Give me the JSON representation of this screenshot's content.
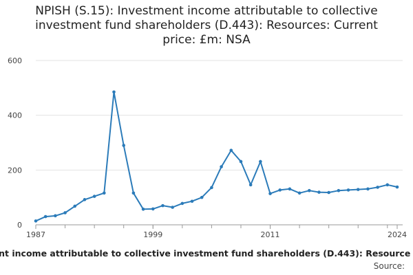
{
  "title_lines": [
    "NPISH (S.15): Investment income attributable to collective",
    "investment fund shareholders (D.443): Resources: Current",
    "price: £m: NSA"
  ],
  "footer": {
    "series_label": "ent income attributable to collective investment fund shareholders (D.443): Resource",
    "source": "Source:"
  },
  "chart_data": {
    "type": "line",
    "title": "NPISH (S.15): Investment income attributable to collective investment fund shareholders (D.443): Resources: Current price: £m: NSA",
    "xlabel": "",
    "ylabel": "",
    "xlim": [
      1987,
      2024
    ],
    "ylim": [
      0,
      600
    ],
    "y_ticks": [
      0,
      200,
      400,
      600
    ],
    "x_ticks": [
      1987,
      1999,
      2011,
      2024
    ],
    "grid": true,
    "line_color": "#2b7bb9",
    "series": [
      {
        "x": [
          1987,
          1988,
          1989,
          1990,
          1991,
          1992,
          1993,
          1994,
          1995,
          1996,
          1997,
          1998,
          1999,
          2000,
          2001,
          2002,
          2003,
          2004,
          2005,
          2006,
          2007,
          2008,
          2009,
          2010,
          2011,
          2012,
          2013,
          2014,
          2015,
          2016,
          2017,
          2018,
          2019,
          2020,
          2021,
          2022,
          2023,
          2024
        ],
        "values": [
          14,
          30,
          33,
          44,
          68,
          92,
          104,
          116,
          485,
          290,
          116,
          57,
          58,
          70,
          64,
          78,
          86,
          100,
          136,
          212,
          272,
          231,
          146,
          231,
          114,
          127,
          131,
          116,
          125,
          119,
          118,
          125,
          127,
          129,
          131,
          137,
          146,
          138
        ]
      }
    ]
  }
}
